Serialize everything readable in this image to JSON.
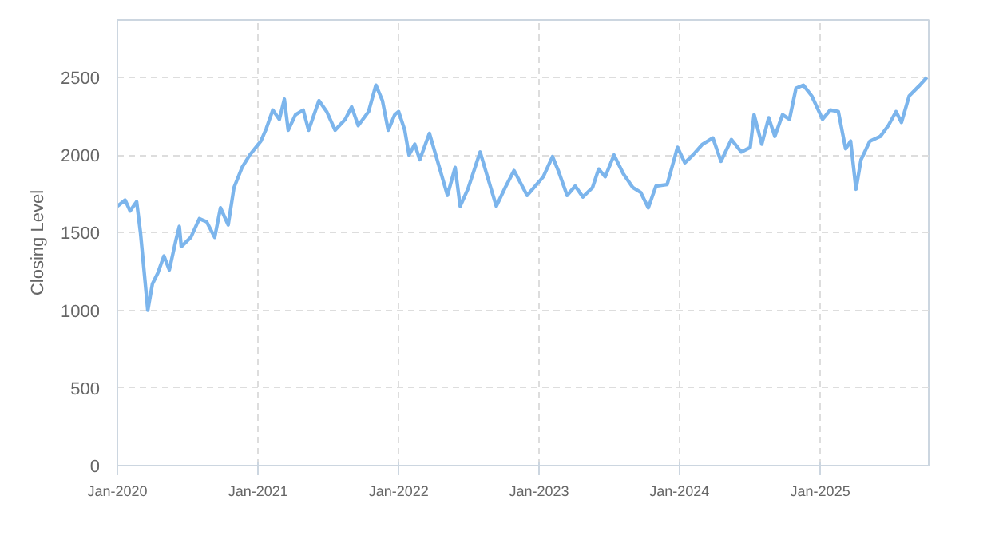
{
  "chart_data": {
    "type": "line",
    "ylabel": "Closing Level",
    "xlim": [
      "2020-01-01",
      "2025-10-10"
    ],
    "ylim": [
      0,
      2870
    ],
    "xticks": [
      {
        "value": "2020-01-01",
        "label": "Jan-2020"
      },
      {
        "value": "2021-01-01",
        "label": "Jan-2021"
      },
      {
        "value": "2022-01-01",
        "label": "Jan-2022"
      },
      {
        "value": "2023-01-01",
        "label": "Jan-2023"
      },
      {
        "value": "2024-01-01",
        "label": "Jan-2024"
      },
      {
        "value": "2025-01-01",
        "label": "Jan-2025"
      }
    ],
    "yticks": [
      0,
      500,
      1000,
      1500,
      2000,
      2500
    ],
    "grid": true,
    "marker": "none",
    "line_style": "solid",
    "x": [
      "2020-01-01",
      "2020-01-21",
      "2020-02-03",
      "2020-02-20",
      "2020-03-01",
      "2020-03-20",
      "2020-04-01",
      "2020-04-15",
      "2020-05-01",
      "2020-05-15",
      "2020-06-01",
      "2020-06-10",
      "2020-06-15",
      "2020-07-10",
      "2020-08-01",
      "2020-08-20",
      "2020-09-10",
      "2020-09-25",
      "2020-10-15",
      "2020-10-30",
      "2020-11-20",
      "2020-12-10",
      "2021-01-08",
      "2021-01-22",
      "2021-02-08",
      "2021-02-25",
      "2021-03-10",
      "2021-03-20",
      "2021-04-08",
      "2021-04-28",
      "2021-05-12",
      "2021-06-08",
      "2021-06-28",
      "2021-07-20",
      "2021-08-15",
      "2021-09-01",
      "2021-09-18",
      "2021-10-15",
      "2021-11-03",
      "2021-11-20",
      "2021-12-05",
      "2021-12-22",
      "2022-01-01",
      "2022-01-17",
      "2022-01-28",
      "2022-02-12",
      "2022-02-25",
      "2022-03-22",
      "2022-04-10",
      "2022-05-08",
      "2022-05-28",
      "2022-06-10",
      "2022-06-30",
      "2022-08-01",
      "2022-08-20",
      "2022-09-12",
      "2022-10-05",
      "2022-10-28",
      "2022-12-01",
      "2023-01-12",
      "2023-02-05",
      "2023-02-20",
      "2023-03-15",
      "2023-04-05",
      "2023-04-25",
      "2023-05-20",
      "2023-06-05",
      "2023-06-22",
      "2023-07-15",
      "2023-08-08",
      "2023-09-02",
      "2023-09-22",
      "2023-10-12",
      "2023-11-01",
      "2023-11-30",
      "2023-12-27",
      "2024-01-15",
      "2024-02-05",
      "2024-03-01",
      "2024-03-28",
      "2024-04-18",
      "2024-05-15",
      "2024-06-10",
      "2024-07-03",
      "2024-07-13",
      "2024-08-02",
      "2024-08-20",
      "2024-09-05",
      "2024-09-25",
      "2024-10-13",
      "2024-10-30",
      "2024-11-18",
      "2024-12-10",
      "2025-01-07",
      "2025-01-27",
      "2025-02-17",
      "2025-03-08",
      "2025-03-21",
      "2025-04-04",
      "2025-04-17",
      "2025-05-10",
      "2025-06-06",
      "2025-06-27",
      "2025-07-17",
      "2025-07-31",
      "2025-08-20",
      "2025-09-17",
      "2025-10-05"
    ],
    "series": [
      {
        "color": "#7cb5ec",
        "values": [
          1670,
          1710,
          1640,
          1700,
          1500,
          1000,
          1170,
          1240,
          1350,
          1260,
          1450,
          1540,
          1410,
          1470,
          1590,
          1570,
          1470,
          1660,
          1550,
          1790,
          1920,
          2000,
          2090,
          2170,
          2290,
          2230,
          2360,
          2160,
          2260,
          2290,
          2160,
          2350,
          2280,
          2160,
          2230,
          2310,
          2190,
          2280,
          2450,
          2350,
          2160,
          2260,
          2280,
          2160,
          2000,
          2070,
          1970,
          2140,
          1980,
          1740,
          1920,
          1670,
          1780,
          2020,
          1860,
          1670,
          1790,
          1900,
          1740,
          1860,
          1990,
          1900,
          1740,
          1800,
          1730,
          1790,
          1910,
          1860,
          2000,
          1880,
          1790,
          1760,
          1660,
          1800,
          1810,
          2050,
          1950,
          2000,
          2070,
          2110,
          1960,
          2100,
          2020,
          2050,
          2260,
          2070,
          2240,
          2120,
          2260,
          2230,
          2430,
          2450,
          2380,
          2230,
          2290,
          2280,
          2040,
          2090,
          1780,
          1970,
          2090,
          2120,
          2190,
          2280,
          2210,
          2380,
          2450,
          2500
        ]
      }
    ]
  }
}
